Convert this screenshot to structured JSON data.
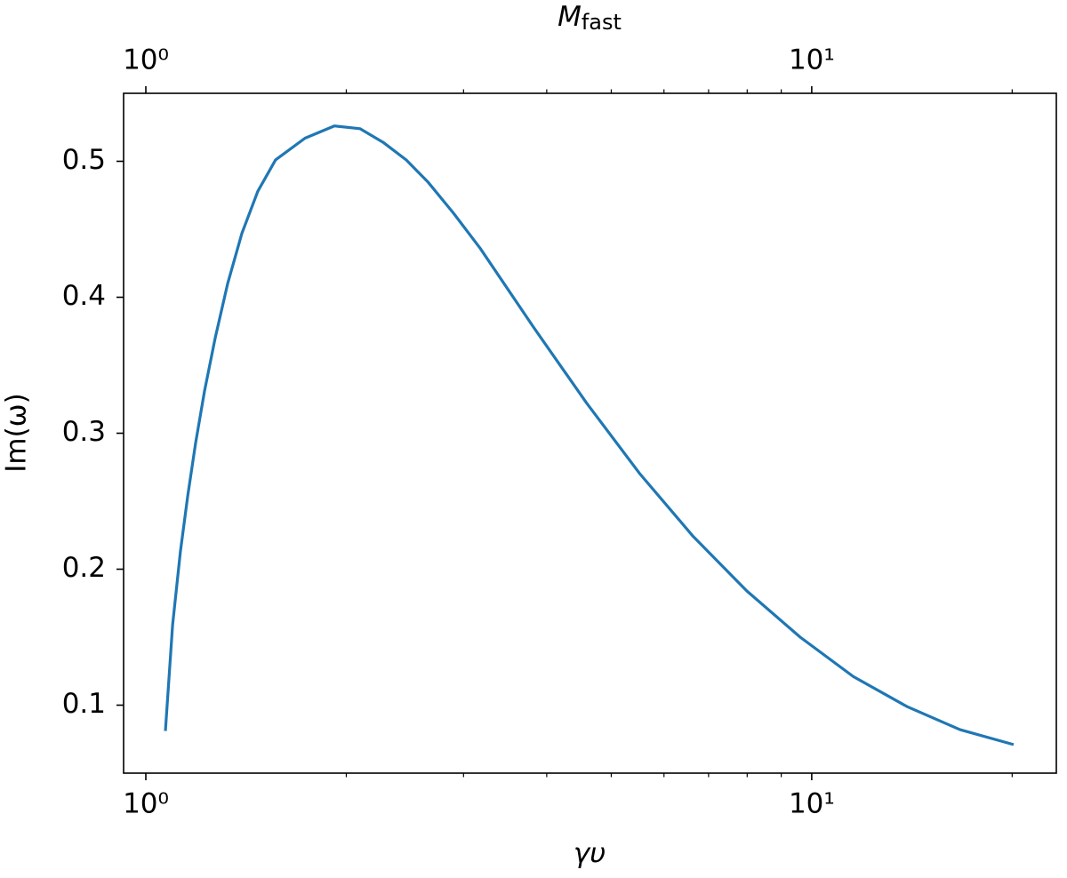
{
  "chart_data": {
    "type": "line",
    "xlabel": "γυ",
    "ylabel": "Im(ω)",
    "x2label": {
      "base": "M",
      "sub": "fast"
    },
    "xscale": "log",
    "x2scale": "log",
    "x": [
      1.07,
      1.097,
      1.127,
      1.156,
      1.188,
      1.225,
      1.271,
      1.327,
      1.394,
      1.473,
      1.566,
      1.734,
      1.919,
      2.097,
      2.271,
      2.461,
      2.65,
      2.896,
      3.178,
      3.821,
      4.594,
      5.523,
      6.64,
      7.99,
      9.61,
      11.55,
      13.9,
      16.7,
      20.1
    ],
    "series": [
      {
        "color": "#1f77b4",
        "values": [
          0.081,
          0.159,
          0.213,
          0.254,
          0.293,
          0.331,
          0.37,
          0.41,
          0.447,
          0.478,
          0.501,
          0.517,
          0.526,
          0.524,
          0.514,
          0.501,
          0.485,
          0.462,
          0.436,
          0.378,
          0.322,
          0.27,
          0.224,
          0.184,
          0.15,
          0.121,
          0.099,
          0.082,
          0.071
        ]
      }
    ],
    "xlim": [
      0.926,
      23.3
    ],
    "xticks": [
      {
        "value": 1,
        "label": "10⁰"
      },
      {
        "value": 10,
        "label": "10¹"
      }
    ],
    "xminorticks": [
      2,
      3,
      4,
      5,
      6,
      7,
      8,
      9,
      20
    ],
    "x2lim": [
      0.926,
      23.3
    ],
    "x2ticks": [
      {
        "value": 1,
        "label": "10⁰"
      },
      {
        "value": 10,
        "label": "10¹"
      }
    ],
    "x2minorticks": [
      2,
      3,
      4,
      5,
      6,
      7,
      8,
      9,
      20
    ],
    "ylim": [
      0.05,
      0.55
    ],
    "yticks": [
      0.1,
      0.2,
      0.3,
      0.4,
      0.5
    ],
    "grid": false
  }
}
